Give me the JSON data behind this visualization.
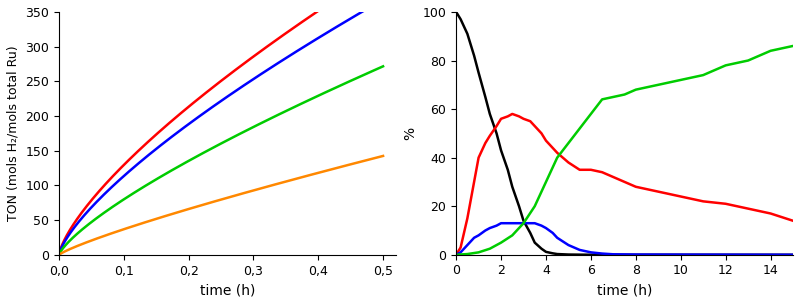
{
  "left": {
    "xlabel": "time (h)",
    "ylabel": "TON (mols H₂/mols total Ru)",
    "xlim": [
      0,
      0.52
    ],
    "ylim": [
      0,
      350
    ],
    "xticks": [
      0.0,
      0.1,
      0.2,
      0.3,
      0.4,
      0.5
    ],
    "yticks": [
      0,
      50,
      100,
      150,
      200,
      250,
      300,
      350
    ],
    "curves": [
      {
        "color": "#ff0000",
        "a": 680,
        "b": 0.72
      },
      {
        "color": "#0000ff",
        "a": 610,
        "b": 0.73
      },
      {
        "color": "#00cc00",
        "a": 460,
        "b": 0.76
      },
      {
        "color": "#ff8800",
        "a": 255,
        "b": 0.84
      }
    ]
  },
  "right": {
    "xlabel": "time (h)",
    "ylabel": "%",
    "xlim": [
      0,
      15
    ],
    "ylim": [
      0,
      100
    ],
    "xticks": [
      0,
      2,
      4,
      6,
      8,
      10,
      12,
      14
    ],
    "yticks": [
      0,
      20,
      40,
      60,
      80,
      100
    ],
    "black": {
      "color": "#000000",
      "x": [
        0,
        0.2,
        0.5,
        0.8,
        1.0,
        1.3,
        1.5,
        1.8,
        2.0,
        2.3,
        2.5,
        2.8,
        3.0,
        3.3,
        3.5,
        3.8,
        4.0,
        4.3,
        4.5,
        5.0,
        5.5,
        6.0,
        6.5,
        7.0,
        15.0
      ],
      "y": [
        100,
        97,
        91,
        82,
        75,
        65,
        58,
        50,
        43,
        35,
        28,
        20,
        14,
        9,
        5,
        2.5,
        1.2,
        0.6,
        0.3,
        0.1,
        0.05,
        0.02,
        0.01,
        0.0,
        0.0
      ]
    },
    "red": {
      "color": "#ff0000",
      "x": [
        0,
        0.2,
        0.5,
        0.8,
        1.0,
        1.3,
        1.5,
        1.8,
        2.0,
        2.3,
        2.5,
        2.8,
        3.0,
        3.3,
        3.5,
        3.8,
        4.0,
        4.3,
        4.5,
        5.0,
        5.5,
        6.0,
        6.5,
        7.0,
        8.0,
        9.0,
        10.0,
        11.0,
        12.0,
        13.0,
        14.0,
        15.0
      ],
      "y": [
        0,
        3,
        15,
        30,
        40,
        46,
        49,
        53,
        56,
        57,
        58,
        57,
        56,
        55,
        53,
        50,
        47,
        44,
        42,
        38,
        35,
        35,
        34,
        32,
        28,
        26,
        24,
        22,
        21,
        19,
        17,
        14
      ]
    },
    "blue": {
      "color": "#0000ff",
      "x": [
        0,
        0.2,
        0.5,
        0.8,
        1.0,
        1.3,
        1.5,
        1.8,
        2.0,
        2.3,
        2.5,
        2.8,
        3.0,
        3.3,
        3.5,
        3.8,
        4.0,
        4.3,
        4.5,
        5.0,
        5.5,
        6.0,
        6.5,
        7.0,
        8.0,
        15.0
      ],
      "y": [
        0,
        1,
        4,
        7,
        8,
        10,
        11,
        12,
        13,
        13,
        13,
        13,
        13,
        13,
        13,
        12,
        11,
        9,
        7,
        4,
        2,
        1,
        0.5,
        0.2,
        0.1,
        0.0
      ]
    },
    "green": {
      "color": "#00cc00",
      "x": [
        0,
        0.5,
        1.0,
        1.5,
        2.0,
        2.5,
        3.0,
        3.5,
        4.0,
        4.5,
        5.0,
        5.5,
        6.0,
        6.5,
        7.0,
        7.5,
        8.0,
        9.0,
        10.0,
        11.0,
        12.0,
        12.5,
        13.0,
        13.5,
        14.0,
        14.5,
        15.0
      ],
      "y": [
        0,
        0.3,
        1.0,
        2.5,
        5,
        8,
        13,
        20,
        30,
        40,
        46,
        52,
        58,
        64,
        65,
        66,
        68,
        70,
        72,
        74,
        78,
        79,
        80,
        82,
        84,
        85,
        86
      ]
    }
  }
}
